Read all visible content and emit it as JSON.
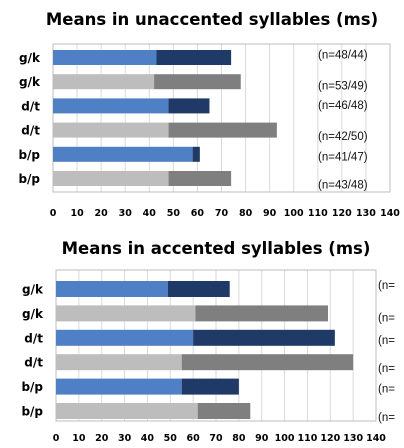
{
  "colors": {
    "voiced_light": "#4f7fc4",
    "voiced_dark": "#1f3a66",
    "voiceless_light": "#bdbdbd",
    "voiceless_dark": "#7f7f7f"
  },
  "chart_data": [
    {
      "type": "bar",
      "orientation": "horizontal",
      "stacked": true,
      "title": "Means in unaccented syllables (ms)",
      "xlim": [
        0,
        140
      ],
      "x_ticks": [
        "0",
        "10",
        "20",
        "30",
        "40",
        "50",
        "60",
        "70",
        "80",
        "90",
        "100",
        "110",
        "120",
        "130",
        "140"
      ],
      "grid": true,
      "categories": [
        "g/k",
        "g/k",
        "d/t",
        "d/t",
        "b/p",
        "b/p"
      ],
      "row_style": [
        "voiced",
        "voiceless",
        "voiced",
        "voiceless",
        "voiced",
        "voiceless"
      ],
      "series": [
        {
          "values": [
            43,
            42,
            48,
            48,
            58,
            48
          ]
        },
        {
          "values": [
            31,
            36,
            17,
            45,
            3,
            26
          ]
        }
      ],
      "totals": [
        74,
        78,
        65,
        93,
        61,
        74
      ],
      "annotations": [
        "(n=48/44)",
        "(n=53/49)",
        "(n=46/48)",
        "(n=42/50)",
        "(n=41/47)",
        "(n=43/48)"
      ]
    },
    {
      "type": "bar",
      "orientation": "horizontal",
      "stacked": true,
      "title": "Means in accented syllables (ms)",
      "xlim": [
        0,
        140
      ],
      "x_ticks": [
        "0",
        "10",
        "20",
        "30",
        "40",
        "50",
        "60",
        "70",
        "80",
        "90",
        "100",
        "110",
        "120",
        "130",
        "140"
      ],
      "grid": true,
      "categories": [
        "g/k",
        "g/k",
        "d/t",
        "d/t",
        "b/p",
        "b/p"
      ],
      "row_style": [
        "voiced",
        "voiceless",
        "voiced",
        "voiceless",
        "voiced",
        "voiceless"
      ],
      "series": [
        {
          "values": [
            49,
            61,
            60,
            55,
            55,
            62
          ]
        },
        {
          "values": [
            27,
            58,
            62,
            75,
            25,
            23
          ]
        }
      ],
      "totals": [
        76,
        119,
        122,
        130,
        80,
        85
      ],
      "annotations": [
        "(n=",
        "(n=",
        "(n=",
        "(n=",
        "(n=",
        "(n="
      ]
    }
  ]
}
